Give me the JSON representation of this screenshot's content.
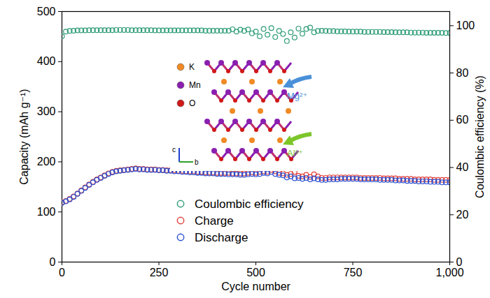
{
  "chart_data": {
    "type": "scatter",
    "x_label": "Cycle number",
    "y_label": "Capacity (mAh g⁻¹)",
    "y2_label": "Coulombic efficiency (%)",
    "xlim": [
      0,
      1000
    ],
    "xticks": [
      0,
      250,
      500,
      750,
      1000
    ],
    "ylim": [
      0,
      500
    ],
    "yticks": [
      0,
      100,
      200,
      300,
      400,
      500
    ],
    "y2lim": [
      0,
      106
    ],
    "y2ticks": [
      0,
      20,
      40,
      60,
      80,
      100
    ],
    "grid": false,
    "legend": "bottom",
    "annotations": {
      "atoms": [
        "K",
        "Mn",
        "O"
      ],
      "dopants": [
        "Mg²⁺",
        "Al³⁺"
      ],
      "axes": [
        "c",
        "b"
      ]
    },
    "x": [
      0,
      10,
      20,
      30,
      40,
      50,
      60,
      70,
      80,
      90,
      100,
      110,
      120,
      130,
      140,
      150,
      160,
      170,
      180,
      190,
      200,
      210,
      220,
      230,
      240,
      250,
      260,
      270,
      280,
      290,
      300,
      310,
      320,
      330,
      340,
      350,
      360,
      370,
      380,
      390,
      400,
      410,
      420,
      430,
      440,
      450,
      460,
      470,
      480,
      490,
      500,
      510,
      520,
      530,
      540,
      550,
      560,
      570,
      580,
      590,
      600,
      610,
      620,
      630,
      640,
      650,
      660,
      670,
      680,
      690,
      700,
      710,
      720,
      730,
      740,
      750,
      760,
      770,
      780,
      790,
      800,
      810,
      820,
      830,
      840,
      850,
      860,
      870,
      880,
      890,
      900,
      910,
      920,
      930,
      940,
      950,
      960,
      970,
      980,
      990,
      1000
    ],
    "series": [
      {
        "name": "Coulombic efficiency",
        "color": "#2e9c78",
        "marker": "circle",
        "axis": "y2",
        "values": [
          95.5,
          97.5,
          97.8,
          97.9,
          98.0,
          98.0,
          98.0,
          98.1,
          98.1,
          98.1,
          98.1,
          98.1,
          98.1,
          98.1,
          98.2,
          98.2,
          98.2,
          98.2,
          98.1,
          98.1,
          98.1,
          98.1,
          98.1,
          98.1,
          98.0,
          98.0,
          98.0,
          98.0,
          98.0,
          98.0,
          98.0,
          98.0,
          98.0,
          98.0,
          98.0,
          98.0,
          98.0,
          97.9,
          97.9,
          97.9,
          97.9,
          97.9,
          97.9,
          97.9,
          98.5,
          97.5,
          98.3,
          97.8,
          98.4,
          96.8,
          97.5,
          95.5,
          98.6,
          96.2,
          99.0,
          95.2,
          97.8,
          96.5,
          93.5,
          97.2,
          95.0,
          98.8,
          96.6,
          98.6,
          99.2,
          97.2,
          97.8,
          97.9,
          97.8,
          97.7,
          97.7,
          97.6,
          97.6,
          97.6,
          97.5,
          97.5,
          97.5,
          97.5,
          97.4,
          97.4,
          97.4,
          97.4,
          97.4,
          97.3,
          97.3,
          97.3,
          97.2,
          97.2,
          97.2,
          97.2,
          97.1,
          97.1,
          97.1,
          97.1,
          97.0,
          97.0,
          97.0,
          97.0,
          97.0,
          96.9,
          96.9
        ]
      },
      {
        "name": "Charge",
        "color": "#e0403a",
        "marker": "circle",
        "values": [
          119,
          122,
          126,
          131,
          137,
          143,
          149,
          155,
          160,
          165,
          169,
          173,
          177,
          180,
          182,
          183,
          184,
          185,
          186,
          187,
          186,
          186,
          185,
          185,
          185,
          184,
          184,
          183,
          183,
          183,
          182,
          182,
          181,
          181,
          181,
          180,
          180,
          179,
          179,
          179,
          178,
          178,
          178,
          178,
          177,
          177,
          177,
          177,
          178,
          179,
          178,
          180,
          181,
          180,
          184,
          181,
          178,
          177,
          174,
          176,
          180,
          172,
          171,
          174,
          170,
          175,
          171,
          168,
          168,
          169,
          169,
          169,
          169,
          169,
          169,
          169,
          169,
          168,
          168,
          168,
          168,
          168,
          168,
          167,
          167,
          167,
          167,
          166,
          166,
          166,
          166,
          165,
          165,
          165,
          165,
          165,
          164,
          164,
          164,
          164,
          164
        ]
      },
      {
        "name": "Discharge",
        "color": "#2a4fd0",
        "marker": "circle",
        "values": [
          118,
          121,
          125,
          130,
          136,
          142,
          148,
          154,
          159,
          164,
          168,
          172,
          176,
          179,
          181,
          182,
          183,
          184,
          185,
          186,
          185,
          185,
          184,
          184,
          184,
          183,
          183,
          182,
          182,
          181,
          181,
          180,
          180,
          179,
          179,
          178,
          178,
          177,
          177,
          177,
          176,
          176,
          176,
          175,
          175,
          175,
          174,
          174,
          175,
          176,
          175,
          176,
          178,
          177,
          180,
          176,
          174,
          173,
          169,
          171,
          167,
          168,
          166,
          168,
          165,
          167,
          165,
          164,
          164,
          165,
          165,
          165,
          166,
          166,
          166,
          166,
          166,
          165,
          165,
          165,
          165,
          165,
          164,
          164,
          164,
          164,
          163,
          163,
          163,
          162,
          162,
          162,
          161,
          161,
          161,
          160,
          160,
          160,
          159,
          159,
          159
        ]
      }
    ]
  }
}
